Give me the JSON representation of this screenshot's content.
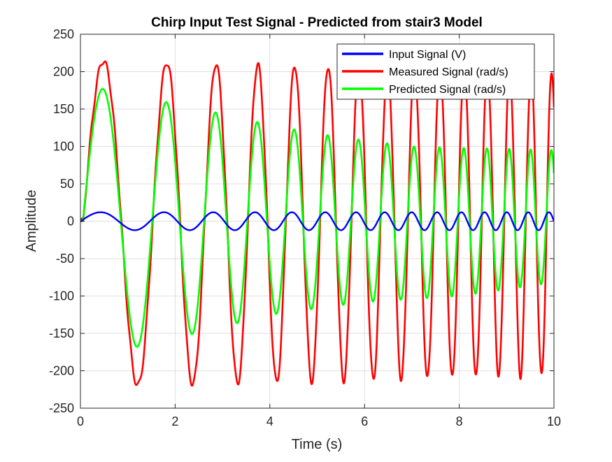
{
  "figure": {
    "background": "#ffffff"
  },
  "chart_data": {
    "type": "line",
    "title": "Chirp Input Test Signal - Predicted from stair3 Model",
    "xlabel": "Time (s)",
    "ylabel": "Amplitude",
    "xlim": [
      0,
      10
    ],
    "ylim": [
      -250,
      250
    ],
    "xticks": [
      0,
      2,
      4,
      6,
      8,
      10
    ],
    "yticks": [
      -250,
      -200,
      -150,
      -100,
      -50,
      0,
      50,
      100,
      150,
      200,
      250
    ],
    "xtick_labels": [
      "0",
      "2",
      "4",
      "6",
      "8",
      "10"
    ],
    "ytick_labels": [
      "-250",
      "-200",
      "-150",
      "-100",
      "-50",
      "0",
      "50",
      "100",
      "150",
      "200",
      "250"
    ],
    "grid": true,
    "legend_position": "top-right",
    "signal": {
      "kind": "linear-chirp",
      "start_frequency_hz": 0.55,
      "end_frequency_hz": 2.35,
      "duration_s": 10
    },
    "series": [
      {
        "name": "Input Signal (V)",
        "color": "#0000ff",
        "amplitude": 12,
        "phase_lag_s": 0
      },
      {
        "name": "Measured Signal (rad/s)",
        "color": "#ff0000",
        "amplitude_start": 215,
        "amplitude_end": 200,
        "phase_lag_s": 0.06,
        "envelope_points": [
          {
            "t": 0.25,
            "peak": 218
          },
          {
            "t": 0.75,
            "trough": -225
          },
          {
            "t": 1.4,
            "trough": -225
          },
          {
            "t": 2.0,
            "trough": -225
          },
          {
            "t": 5.0,
            "peak": 210
          },
          {
            "t": 7.0,
            "trough": -215
          },
          {
            "t": 10.0,
            "peak": 210
          }
        ]
      },
      {
        "name": "Predicted Signal (rad/s)",
        "color": "#00ff00",
        "envelope_points": [
          {
            "t": 0.27,
            "peak": 180
          },
          {
            "t": 0.7,
            "trough": -175
          },
          {
            "t": 1.05,
            "peak": 168
          },
          {
            "t": 1.4,
            "trough": -165
          },
          {
            "t": 1.75,
            "peak": 160
          },
          {
            "t": 2.0,
            "trough": -155
          },
          {
            "t": 2.3,
            "peak": 153
          },
          {
            "t": 2.6,
            "trough": -148
          },
          {
            "t": 3.25,
            "peak": 140
          },
          {
            "t": 3.9,
            "peak": 130
          },
          {
            "t": 5.0,
            "peak": 117
          },
          {
            "t": 6.0,
            "peak": 108
          },
          {
            "t": 7.0,
            "peak": 100
          },
          {
            "t": 8.0,
            "peak": 98
          },
          {
            "t": 9.0,
            "peak": 97
          },
          {
            "t": 10.0,
            "peak": 95
          },
          {
            "t": 10.0,
            "trough": -82
          }
        ]
      }
    ]
  }
}
